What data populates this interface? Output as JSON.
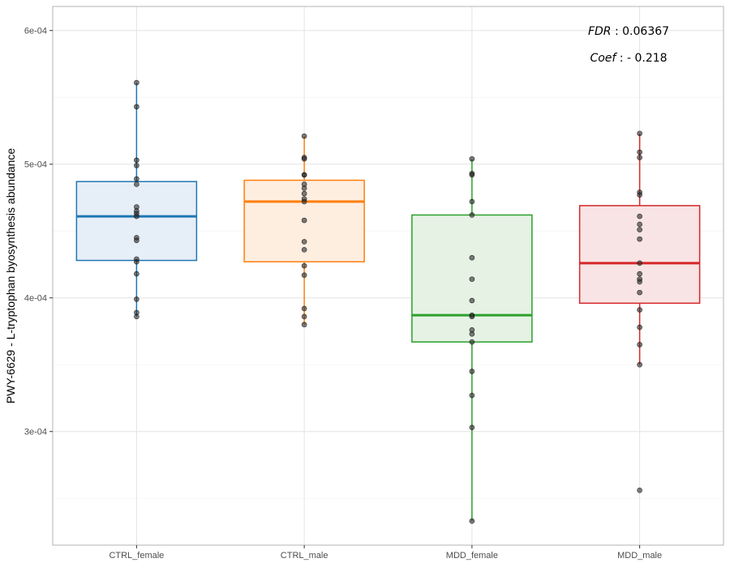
{
  "chart_data": {
    "type": "boxplot",
    "xlabel": "",
    "ylabel": "PWY-6629 - L-tryptophan byosynthesis abundance",
    "ylim": [
      0.000215,
      0.000618
    ],
    "yticks": [
      0.0003,
      0.0004,
      0.0005,
      0.0006
    ],
    "ytick_labels": [
      "3e-04",
      "4e-04",
      "5e-04",
      "6e-04"
    ],
    "grid": true,
    "categories": [
      "CTRL_female",
      "CTRL_male",
      "MDD_female",
      "MDD_male"
    ],
    "groups": [
      {
        "name": "CTRL_female",
        "color": "#1f77b4",
        "fill": "#e6eef7",
        "stats": {
          "min": 0.000386,
          "q1": 0.000428,
          "median": 0.000461,
          "q3": 0.000487,
          "max": 0.000561
        },
        "points": [
          0.000561,
          0.000543,
          0.000503,
          0.000499,
          0.000489,
          0.000485,
          0.000468,
          0.000465,
          0.000463,
          0.000461,
          0.000445,
          0.000443,
          0.000429,
          0.000427,
          0.000418,
          0.000399,
          0.000389,
          0.000386
        ]
      },
      {
        "name": "CTRL_male",
        "color": "#ff7f0e",
        "fill": "#fdeee0",
        "stats": {
          "min": 0.00038,
          "q1": 0.000427,
          "median": 0.000472,
          "q3": 0.000488,
          "max": 0.000521
        },
        "points": [
          0.000521,
          0.000505,
          0.000504,
          0.000492,
          0.000492,
          0.000485,
          0.000482,
          0.000478,
          0.000474,
          0.000472,
          0.000458,
          0.000442,
          0.000436,
          0.000424,
          0.000417,
          0.000392,
          0.000386,
          0.00038
        ]
      },
      {
        "name": "MDD_female",
        "color": "#2ca02c",
        "fill": "#e6f2e4",
        "stats": {
          "min": 0.000233,
          "q1": 0.000367,
          "median": 0.000387,
          "q3": 0.000462,
          "max": 0.000504
        },
        "points": [
          0.000504,
          0.000493,
          0.000492,
          0.000472,
          0.000462,
          0.00043,
          0.000414,
          0.000398,
          0.000387,
          0.000386,
          0.000376,
          0.000373,
          0.000367,
          0.000345,
          0.000327,
          0.000303,
          0.000233
        ]
      },
      {
        "name": "MDD_male",
        "color": "#d62728",
        "fill": "#f8e4e4",
        "stats": {
          "min": 0.00035,
          "q1": 0.000396,
          "median": 0.000426,
          "q3": 0.000469,
          "max": 0.000523
        },
        "points": [
          0.000523,
          0.000509,
          0.000505,
          0.000479,
          0.000477,
          0.000461,
          0.000455,
          0.000451,
          0.000444,
          0.000426,
          0.000418,
          0.000414,
          0.000412,
          0.000404,
          0.000391,
          0.000378,
          0.000365,
          0.00035,
          0.000256
        ]
      }
    ],
    "annotations": [
      {
        "label": "FDR",
        "sep": " : ",
        "value": "0.06367"
      },
      {
        "label": "Coef",
        "sep": " : ",
        "value": "- 0.218"
      }
    ]
  }
}
